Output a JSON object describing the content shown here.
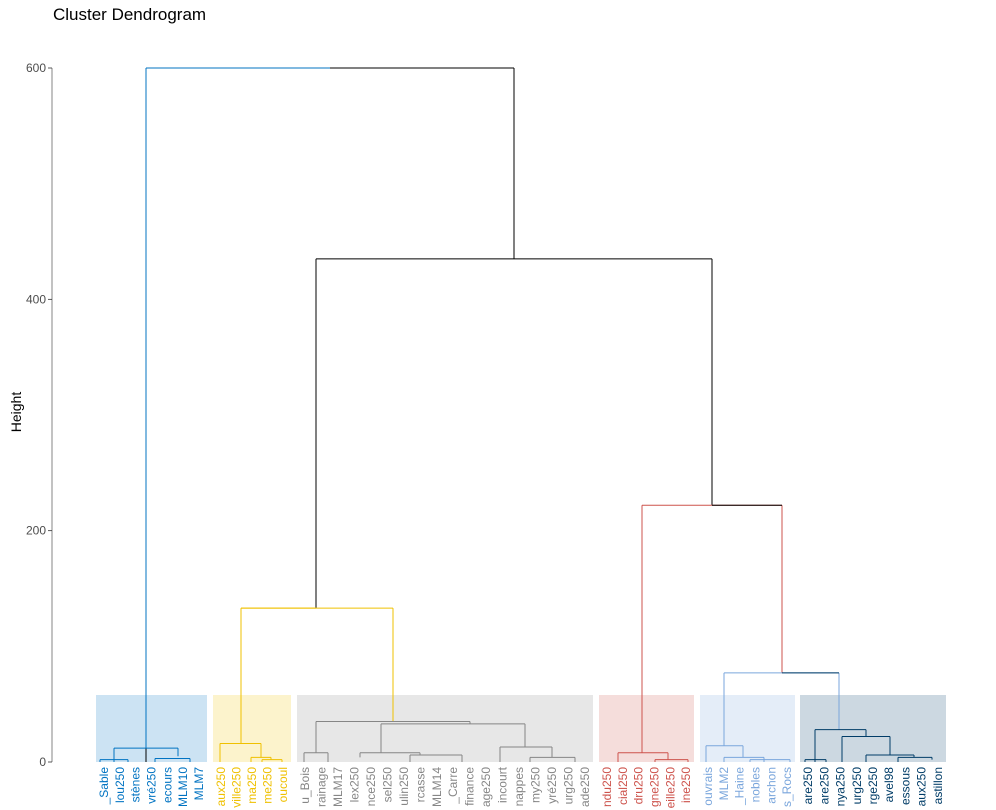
{
  "chart_data": {
    "type": "dendrogram",
    "title": "Cluster Dendrogram",
    "ylabel": "Height",
    "xlabel": "",
    "ylim": [
      0,
      600
    ],
    "yticks": [
      0,
      200,
      400,
      600
    ],
    "grid": false,
    "colors": {
      "root": "#000000",
      "blue": "#0073c2",
      "yellow": "#efc000",
      "grey": "#868686",
      "red": "#cd534c",
      "lightblue": "#7aa6dc",
      "navy": "#003c67"
    },
    "clusters": [
      {
        "id": "c1",
        "color": "#0073c2",
        "fill": "#cce3f3",
        "leaves": [
          "_Sable",
          "lou250",
          "stènes",
          "vré250",
          "ecours",
          "MLM10",
          "MLM7"
        ]
      },
      {
        "id": "c2",
        "color": "#efc000",
        "fill": "#fcf3cc",
        "leaves": [
          "aux250",
          "ville250",
          "ma250",
          "me250",
          "oucoul"
        ]
      },
      {
        "id": "c3",
        "color": "#868686",
        "fill": "#e7e7e7",
        "leaves": [
          "u_Bois",
          "rainage",
          "MLM17",
          "lex250",
          "nce250",
          "sel250",
          "ulin250",
          "rcasse",
          "MLM14",
          "_Carre",
          "finance",
          "age250",
          "incourt",
          "nappes",
          "my250",
          "yré250",
          "urg250",
          "ade250"
        ]
      },
      {
        "id": "c4",
        "color": "#cd534c",
        "fill": "#f5dddb",
        "leaves": [
          "ndu250",
          "cial250",
          "dru250",
          "gne250",
          "eille250",
          "ine250"
        ]
      },
      {
        "id": "c5",
        "color": "#7aa6dc",
        "fill": "#e4edf8",
        "leaves": [
          "ouvrais",
          "MLM2",
          "_Haine",
          "nobles",
          "archon",
          "s_Rocs"
        ]
      },
      {
        "id": "c6",
        "color": "#003c67",
        "fill": "#ccd8e1",
        "leaves": [
          "are250",
          "are250",
          "nya250",
          "urg250",
          "rge250",
          "avel98",
          "essous",
          "aux250",
          "astillon"
        ]
      }
    ],
    "merges": [
      {
        "id": "root",
        "height": 600,
        "children": [
          "c1",
          "m435"
        ],
        "color": "root"
      },
      {
        "id": "m435",
        "height": 435,
        "children": [
          "m133",
          "m222"
        ],
        "color": "root"
      },
      {
        "id": "m133",
        "height": 133,
        "children": [
          "c2",
          "c3"
        ],
        "color": "root"
      },
      {
        "id": "m222",
        "height": 222,
        "children": [
          "c4",
          "m77"
        ],
        "color": "root"
      },
      {
        "id": "m77",
        "height": 77,
        "children": [
          "c5",
          "c6"
        ],
        "color": "root"
      }
    ],
    "cluster_internal": {
      "c1": [
        {
          "l": 0,
          "r": 2,
          "h": 2
        },
        {
          "l": 3,
          "r": 4,
          "h": 2
        },
        {
          "l": 5,
          "r": 6,
          "h": 3
        },
        {
          "l": "0-2",
          "r": "3-4",
          "h": 12
        },
        {
          "l": "0-4",
          "r": "5-6",
          "h": 5
        }
      ],
      "c2": [
        {
          "l": 0,
          "r": 1,
          "h": 16
        },
        {
          "l": 2,
          "r": 3,
          "h": 4
        },
        {
          "l": 3,
          "r": 4,
          "h": 2
        }
      ],
      "c3_heights": {
        "main": 35,
        "left": 8,
        "mid": 33,
        "mid_a": 8,
        "mid_b": 6,
        "right": 33,
        "right_a": 13,
        "right_b": 4
      }
    }
  }
}
